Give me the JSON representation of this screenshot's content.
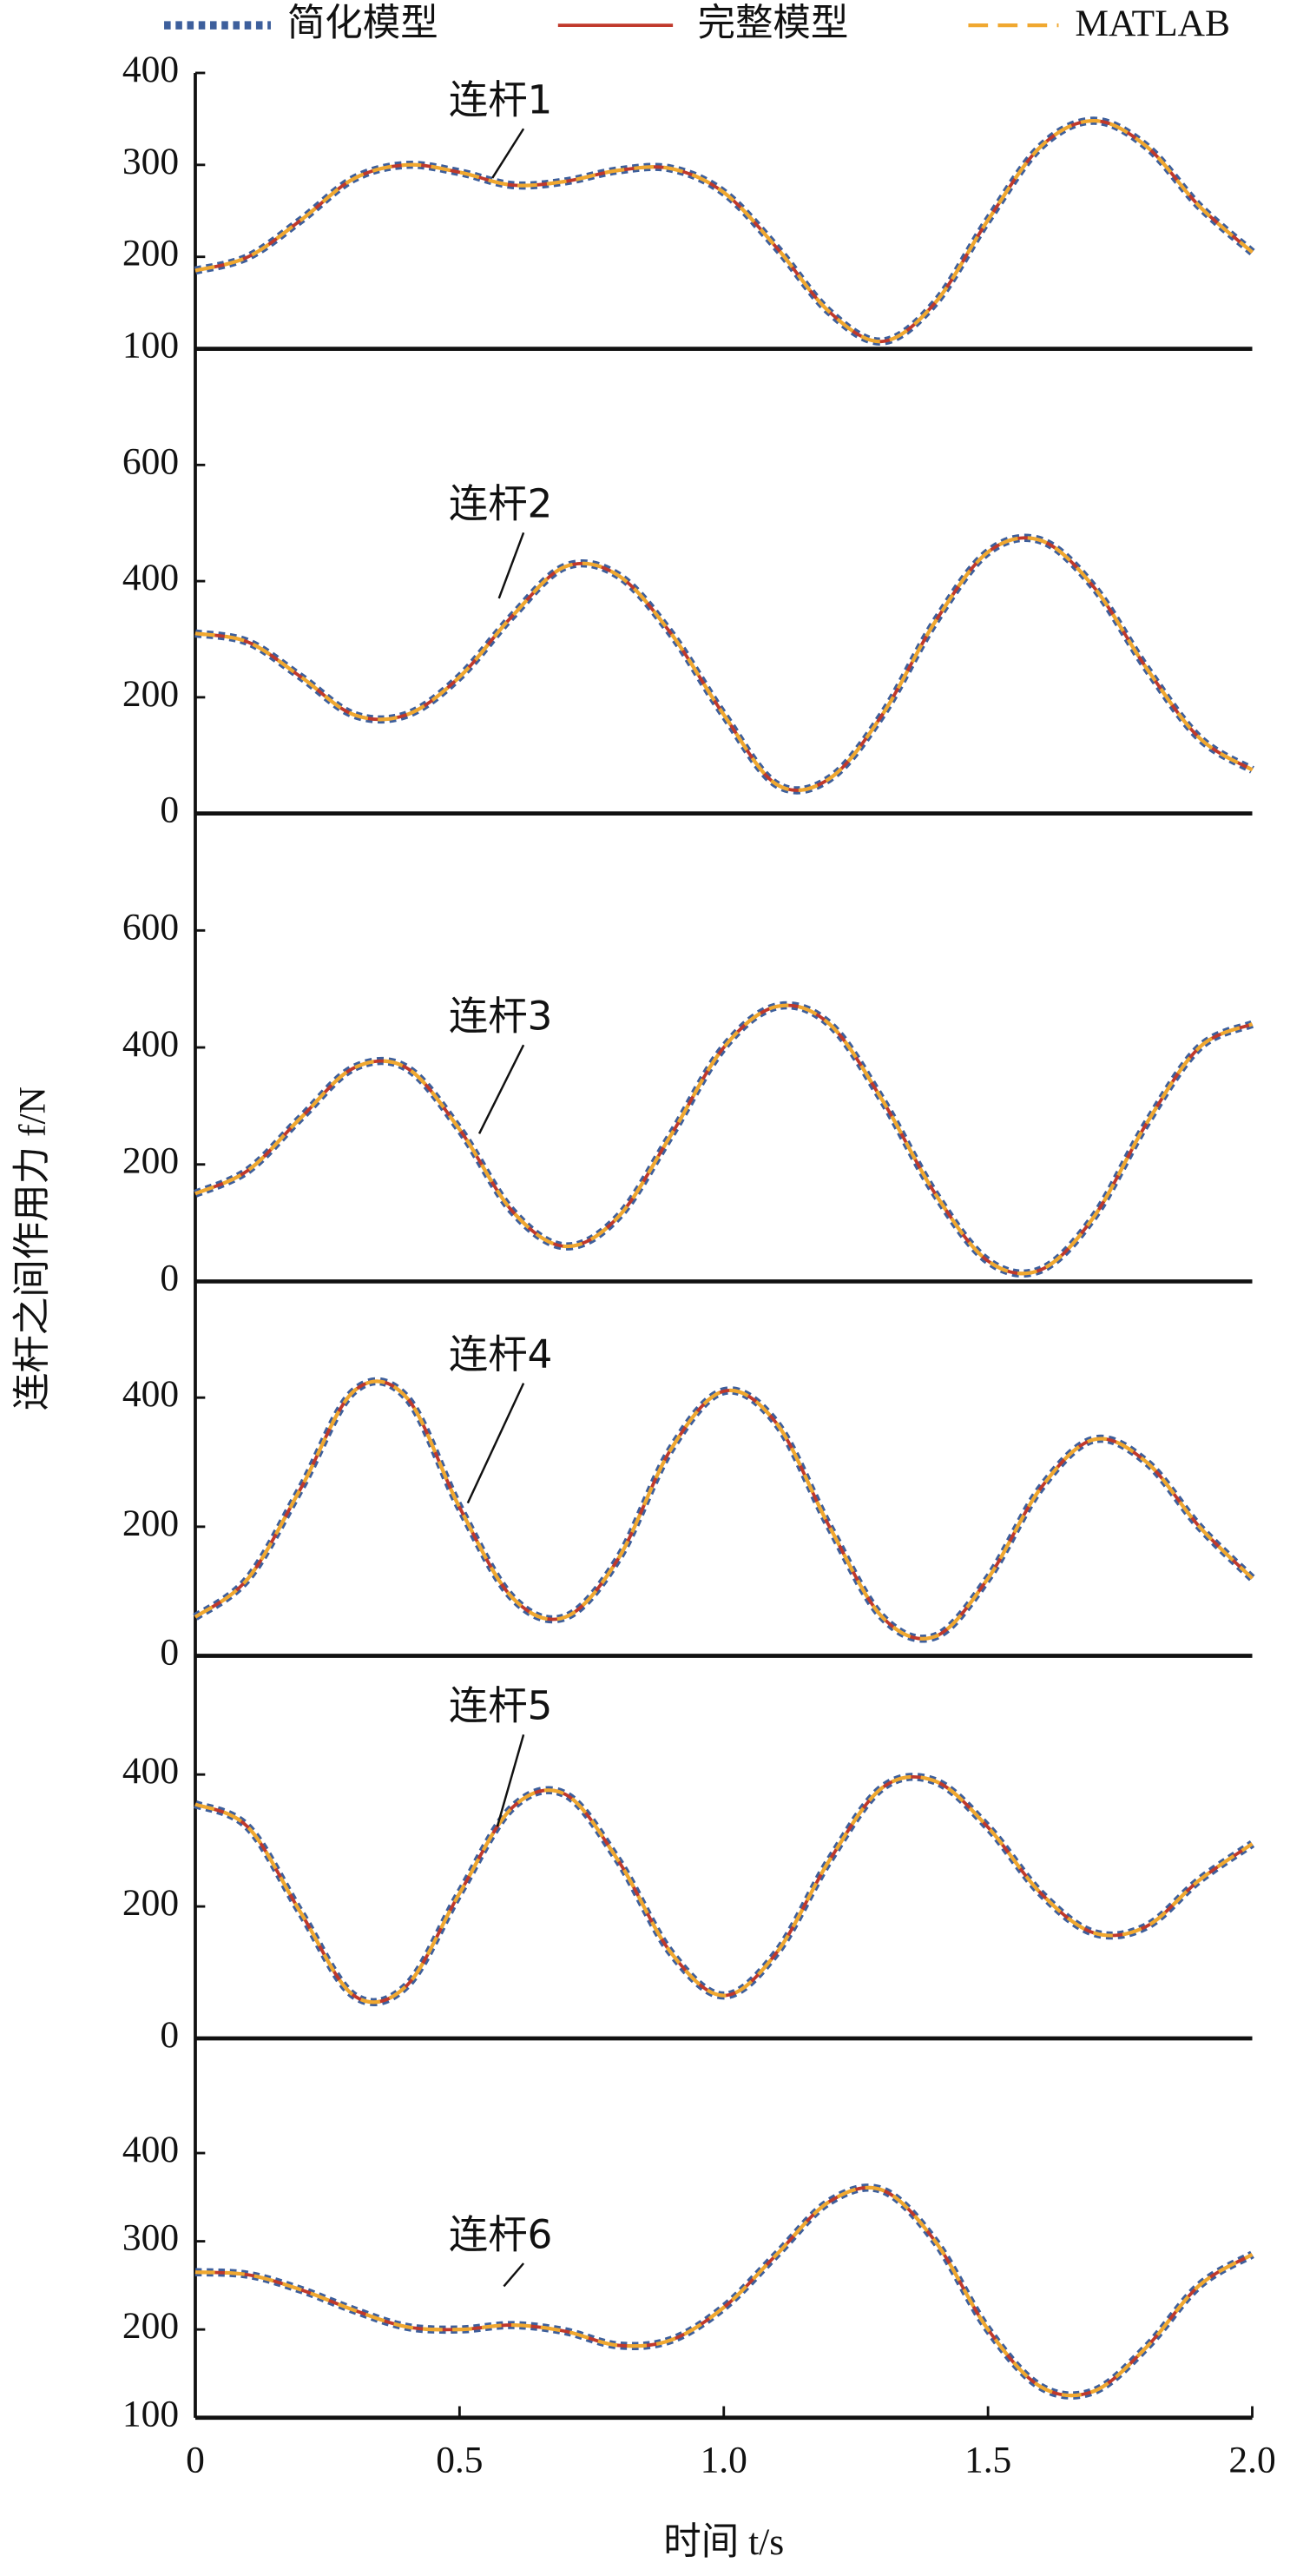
{
  "legend": [
    {
      "name": "简化模型",
      "color": "#3d5f9c",
      "style": "dotted"
    },
    {
      "name": "完整模型",
      "color": "#c0392b",
      "style": "solid"
    },
    {
      "name": "MATLAB",
      "color": "#f0a830",
      "style": "dashed"
    }
  ],
  "xlabel": "时间 t/s",
  "ylabel": "连杆之间作用力 f/N",
  "x": [
    0,
    0.1,
    0.2,
    0.3,
    0.4,
    0.5,
    0.6,
    0.7,
    0.8,
    0.9,
    1.0,
    1.1,
    1.2,
    1.3,
    1.4,
    1.5,
    1.6,
    1.7,
    1.8,
    1.9,
    2.0
  ],
  "xlim": [
    0,
    2
  ],
  "xticks": [
    0,
    0.5,
    {
      "value": 1,
      "label": "1.0"
    },
    1.5,
    {
      "value": 2,
      "label": "2.0"
    }
  ],
  "chart_data": [
    {
      "type": "line",
      "annotation": "连杆1",
      "ylim": [
        100,
        400
      ],
      "yticks": [
        100,
        200,
        300,
        400
      ],
      "series": [
        {
          "values": [
            185,
            200,
            240,
            285,
            300,
            292,
            278,
            282,
            294,
            296,
            270,
            210,
            140,
            108,
            150,
            240,
            320,
            348,
            320,
            255,
            205
          ]
        },
        {
          "values": [
            185,
            200,
            240,
            285,
            300,
            292,
            278,
            282,
            294,
            296,
            270,
            210,
            140,
            108,
            150,
            240,
            320,
            348,
            320,
            255,
            205
          ]
        },
        {
          "values": [
            185,
            200,
            240,
            285,
            300,
            292,
            278,
            282,
            294,
            296,
            270,
            210,
            140,
            108,
            150,
            240,
            320,
            348,
            320,
            255,
            205
          ]
        }
      ]
    },
    {
      "type": "line",
      "annotation": "连杆2",
      "ylim": [
        0,
        800
      ],
      "yticks": [
        0,
        200,
        400,
        600
      ],
      "series": [
        {
          "values": [
            310,
            295,
            235,
            170,
            170,
            235,
            340,
            425,
            410,
            310,
            170,
            50,
            60,
            170,
            330,
            450,
            470,
            390,
            250,
            130,
            75
          ]
        },
        {
          "values": [
            310,
            295,
            235,
            170,
            170,
            235,
            340,
            425,
            410,
            310,
            170,
            50,
            60,
            170,
            330,
            450,
            470,
            390,
            250,
            130,
            75
          ]
        },
        {
          "values": [
            310,
            295,
            235,
            170,
            170,
            235,
            340,
            425,
            410,
            310,
            170,
            50,
            60,
            170,
            330,
            450,
            470,
            390,
            250,
            130,
            75
          ]
        }
      ]
    },
    {
      "type": "line",
      "annotation": "连杆3",
      "ylim": [
        0,
        800
      ],
      "yticks": [
        0,
        200,
        400,
        600
      ],
      "series": [
        {
          "values": [
            150,
            190,
            280,
            365,
            365,
            260,
            120,
            60,
            110,
            250,
            400,
            470,
            440,
            310,
            150,
            35,
            20,
            110,
            270,
            400,
            440
          ]
        },
        {
          "values": [
            150,
            190,
            280,
            365,
            365,
            260,
            120,
            60,
            110,
            250,
            400,
            470,
            440,
            310,
            150,
            35,
            20,
            110,
            270,
            400,
            440
          ]
        },
        {
          "values": [
            150,
            190,
            280,
            365,
            365,
            260,
            120,
            60,
            110,
            250,
            400,
            470,
            440,
            310,
            150,
            35,
            20,
            110,
            270,
            400,
            440
          ]
        }
      ]
    },
    {
      "type": "line",
      "annotation": "连杆4",
      "ylim": [
        0,
        580
      ],
      "yticks": [
        0,
        200,
        400
      ],
      "series": [
        {
          "values": [
            60,
            120,
            260,
            410,
            400,
            230,
            90,
            60,
            150,
            320,
            410,
            360,
            200,
            60,
            30,
            120,
            260,
            335,
            300,
            200,
            120
          ]
        },
        {
          "values": [
            60,
            120,
            260,
            410,
            400,
            230,
            90,
            60,
            150,
            320,
            410,
            360,
            200,
            60,
            30,
            120,
            260,
            335,
            300,
            200,
            120
          ]
        },
        {
          "values": [
            60,
            120,
            260,
            410,
            400,
            230,
            90,
            60,
            150,
            320,
            410,
            360,
            200,
            60,
            30,
            120,
            260,
            335,
            300,
            200,
            120
          ]
        }
      ]
    },
    {
      "type": "line",
      "annotation": "连杆5",
      "ylim": [
        0,
        580
      ],
      "yticks": [
        0,
        200,
        400
      ],
      "series": [
        {
          "values": [
            355,
            320,
            190,
            65,
            80,
            220,
            350,
            370,
            270,
            130,
            65,
            130,
            270,
            380,
            390,
            320,
            220,
            160,
            170,
            240,
            295
          ]
        },
        {
          "values": [
            355,
            320,
            190,
            65,
            80,
            220,
            350,
            370,
            270,
            130,
            65,
            130,
            270,
            380,
            390,
            320,
            220,
            160,
            170,
            240,
            295
          ]
        },
        {
          "values": [
            355,
            320,
            190,
            65,
            80,
            220,
            350,
            370,
            270,
            130,
            65,
            130,
            270,
            380,
            390,
            320,
            220,
            160,
            170,
            240,
            295
          ]
        }
      ]
    },
    {
      "type": "line",
      "annotation": "连杆6",
      "ylim": [
        100,
        530
      ],
      "yticks": [
        100,
        200,
        300,
        400
      ],
      "series": [
        {
          "values": [
            265,
            262,
            245,
            222,
            203,
            200,
            205,
            198,
            182,
            188,
            225,
            285,
            345,
            358,
            300,
            200,
            135,
            130,
            180,
            250,
            285
          ]
        },
        {
          "values": [
            265,
            262,
            245,
            222,
            203,
            200,
            205,
            198,
            182,
            188,
            225,
            285,
            345,
            358,
            300,
            200,
            135,
            130,
            180,
            250,
            285
          ]
        },
        {
          "values": [
            265,
            262,
            245,
            222,
            203,
            200,
            205,
            198,
            182,
            188,
            225,
            285,
            345,
            358,
            300,
            200,
            135,
            130,
            180,
            250,
            285
          ]
        }
      ]
    }
  ]
}
